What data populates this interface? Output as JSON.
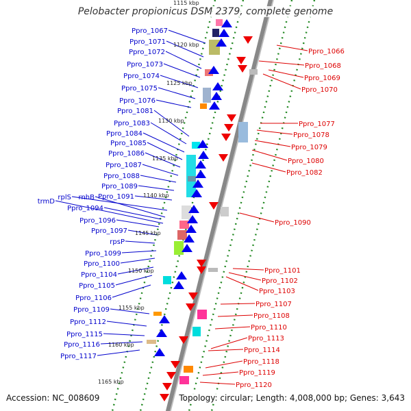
{
  "title": "Pelobacter propionicus DSM 2379, complete genome",
  "footer": {
    "accession": "Accession: NC_008609",
    "summary": "Topology: circular; Length: 4,008,000 bp; Genes: 3,643"
  },
  "colors": {
    "forward_label": "#0000cc",
    "reverse_label": "#dd0000",
    "forward_gene": "#0000ee",
    "reverse_gene": "#ee0000",
    "backbone": "#888888",
    "tick": "#228822"
  },
  "kbp_ticks": [
    "1115 kbp",
    "1120 kbp",
    "1125 kbp",
    "1130 kbp",
    "1135 kbp",
    "1140 kbp",
    "1145 kbp",
    "1150 kbp",
    "1155 kbp",
    "1160 kbp",
    "1165 kbp"
  ],
  "forward_labels": [
    "Ppro_1067",
    "Ppro_1071",
    "Ppro_1072",
    "Ppro_1073",
    "Ppro_1074",
    "Ppro_1075",
    "Ppro_1076",
    "Ppro_1081",
    "Ppro_1083",
    "Ppro_1084",
    "Ppro_1085",
    "Ppro_1086",
    "Ppro_1087",
    "Ppro_1088",
    "Ppro_1089",
    "Ppro_1091",
    "rplS",
    "rnhB",
    "trmD",
    "Ppro_1094",
    "Ppro_1096",
    "Ppro_1097",
    "rpsP",
    "Ppro_1099",
    "Ppro_1100",
    "Ppro_1104",
    "Ppro_1105",
    "Ppro_1106",
    "Ppro_1109",
    "Ppro_1112",
    "Ppro_1115",
    "Ppro_1116",
    "Ppro_1117"
  ],
  "reverse_labels": [
    "Ppro_1066",
    "Ppro_1068",
    "Ppro_1069",
    "Ppro_1070",
    "Ppro_1077",
    "Ppro_1078",
    "Ppro_1079",
    "Ppro_1080",
    "Ppro_1082",
    "Ppro_1090",
    "Ppro_1101",
    "Ppro_1102",
    "Ppro_1103",
    "Ppro_1107",
    "Ppro_1108",
    "Ppro_1110",
    "Ppro_1113",
    "Ppro_1114",
    "Ppro_1118",
    "Ppro_1119",
    "Ppro_1120"
  ]
}
